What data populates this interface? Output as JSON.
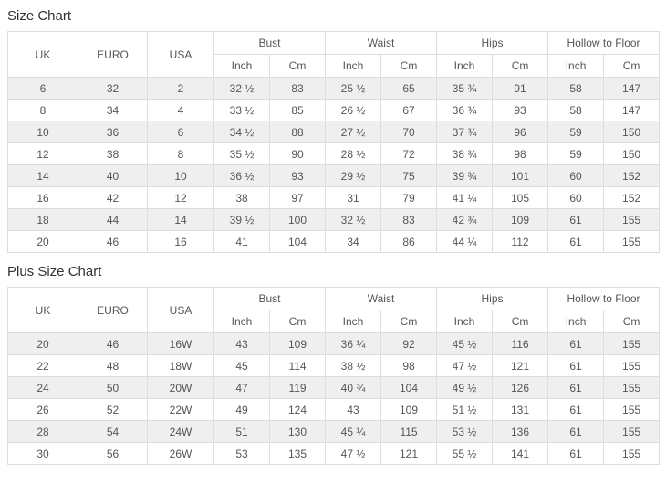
{
  "titles": {
    "size_chart": "Size Chart",
    "plus_size_chart": "Plus Size Chart"
  },
  "table_header": {
    "main_columns": [
      "UK",
      "EURO",
      "USA"
    ],
    "groups": [
      "Bust",
      "Waist",
      "Hips",
      "Hollow to Floor"
    ],
    "sub_columns": [
      "Inch",
      "Cm"
    ]
  },
  "size_chart": {
    "rows": [
      [
        "6",
        "32",
        "2",
        "32 ½",
        "83",
        "25 ½",
        "65",
        "35 ¾",
        "91",
        "58",
        "147"
      ],
      [
        "8",
        "34",
        "4",
        "33 ½",
        "85",
        "26 ½",
        "67",
        "36 ¾",
        "93",
        "58",
        "147"
      ],
      [
        "10",
        "36",
        "6",
        "34 ½",
        "88",
        "27 ½",
        "70",
        "37 ¾",
        "96",
        "59",
        "150"
      ],
      [
        "12",
        "38",
        "8",
        "35 ½",
        "90",
        "28 ½",
        "72",
        "38 ¾",
        "98",
        "59",
        "150"
      ],
      [
        "14",
        "40",
        "10",
        "36 ½",
        "93",
        "29 ½",
        "75",
        "39 ¾",
        "101",
        "60",
        "152"
      ],
      [
        "16",
        "42",
        "12",
        "38",
        "97",
        "31",
        "79",
        "41 ¼",
        "105",
        "60",
        "152"
      ],
      [
        "18",
        "44",
        "14",
        "39 ½",
        "100",
        "32 ½",
        "83",
        "42 ¾",
        "109",
        "61",
        "155"
      ],
      [
        "20",
        "46",
        "16",
        "41",
        "104",
        "34",
        "86",
        "44 ¼",
        "112",
        "61",
        "155"
      ]
    ]
  },
  "plus_size_chart": {
    "rows": [
      [
        "20",
        "46",
        "16W",
        "43",
        "109",
        "36 ¼",
        "92",
        "45 ½",
        "116",
        "61",
        "155"
      ],
      [
        "22",
        "48",
        "18W",
        "45",
        "114",
        "38 ½",
        "98",
        "47 ½",
        "121",
        "61",
        "155"
      ],
      [
        "24",
        "50",
        "20W",
        "47",
        "119",
        "40 ¾",
        "104",
        "49 ½",
        "126",
        "61",
        "155"
      ],
      [
        "26",
        "52",
        "22W",
        "49",
        "124",
        "43",
        "109",
        "51 ½",
        "131",
        "61",
        "155"
      ],
      [
        "28",
        "54",
        "24W",
        "51",
        "130",
        "45 ¼",
        "115",
        "53 ½",
        "136",
        "61",
        "155"
      ],
      [
        "30",
        "56",
        "26W",
        "53",
        "135",
        "47 ½",
        "121",
        "55 ½",
        "141",
        "61",
        "155"
      ]
    ]
  },
  "colors": {
    "stripe": "#efefef",
    "border": "#dddddd",
    "text": "#555555",
    "title": "#333333",
    "background": "#ffffff"
  }
}
